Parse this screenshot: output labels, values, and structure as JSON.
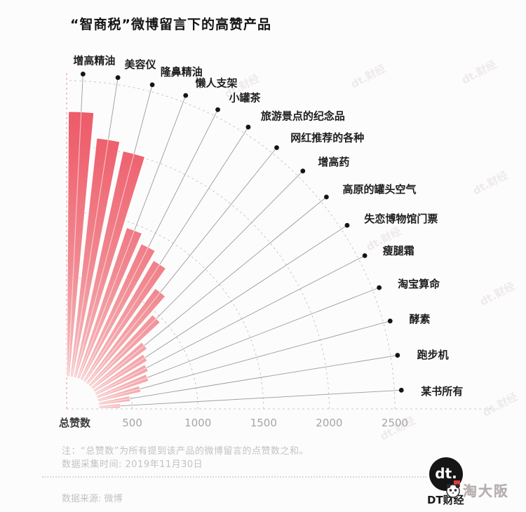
{
  "title": "“智商税”微博留言下的高赞产品",
  "chart_data": {
    "type": "bar",
    "variant": "radial-fan-quarter",
    "title": "“智商税”微博留言下的高赞产品",
    "xlabel": "总赞数",
    "categories": [
      "增高精油",
      "美容仪",
      "隆鼻精油",
      "懒人支架",
      "小罐茶",
      "旅游景点的纪念品",
      "网红推荐的各种",
      "增高药",
      "高原的罐头空气",
      "失恋博物馆门票",
      "瘦腿霜",
      "淘宝算命",
      "酵素",
      "跑步机",
      "某书所有"
    ],
    "values": [
      2265,
      2075,
      2010,
      1455,
      1380,
      1310,
      1140,
      970,
      765,
      715,
      685,
      660,
      580,
      490,
      410
    ],
    "axis_label": "总赞数",
    "ticks": [
      500,
      1000,
      1500,
      2000,
      2500
    ],
    "rlim": [
      0,
      2500
    ],
    "grid": "dashed-arcs",
    "legend": "none",
    "colors": {
      "bar_outer": "#ec5663",
      "bar_mid": "#f18890",
      "bar_inner": "#f9d6d6",
      "grid_line": "#c8c8c8",
      "axis_dashed_vertical": "#e9a3a9",
      "guide_line": "#9b9b9b",
      "dot": "#151515",
      "label": "#1d1d1d",
      "tick_label": "#a5a5a5"
    }
  },
  "footer": {
    "note_line1": "注：“总赞数”为所有提到该产品的微博留言的点赞数之和。",
    "note_line2": "数据采集时间: 2019年11月30日",
    "source": "数据来源: 微博",
    "brand_logo_text": "dt.",
    "brand_name": "DT财经",
    "watermark_brand": "淘大阪"
  },
  "background_watermark": "dt.财经"
}
